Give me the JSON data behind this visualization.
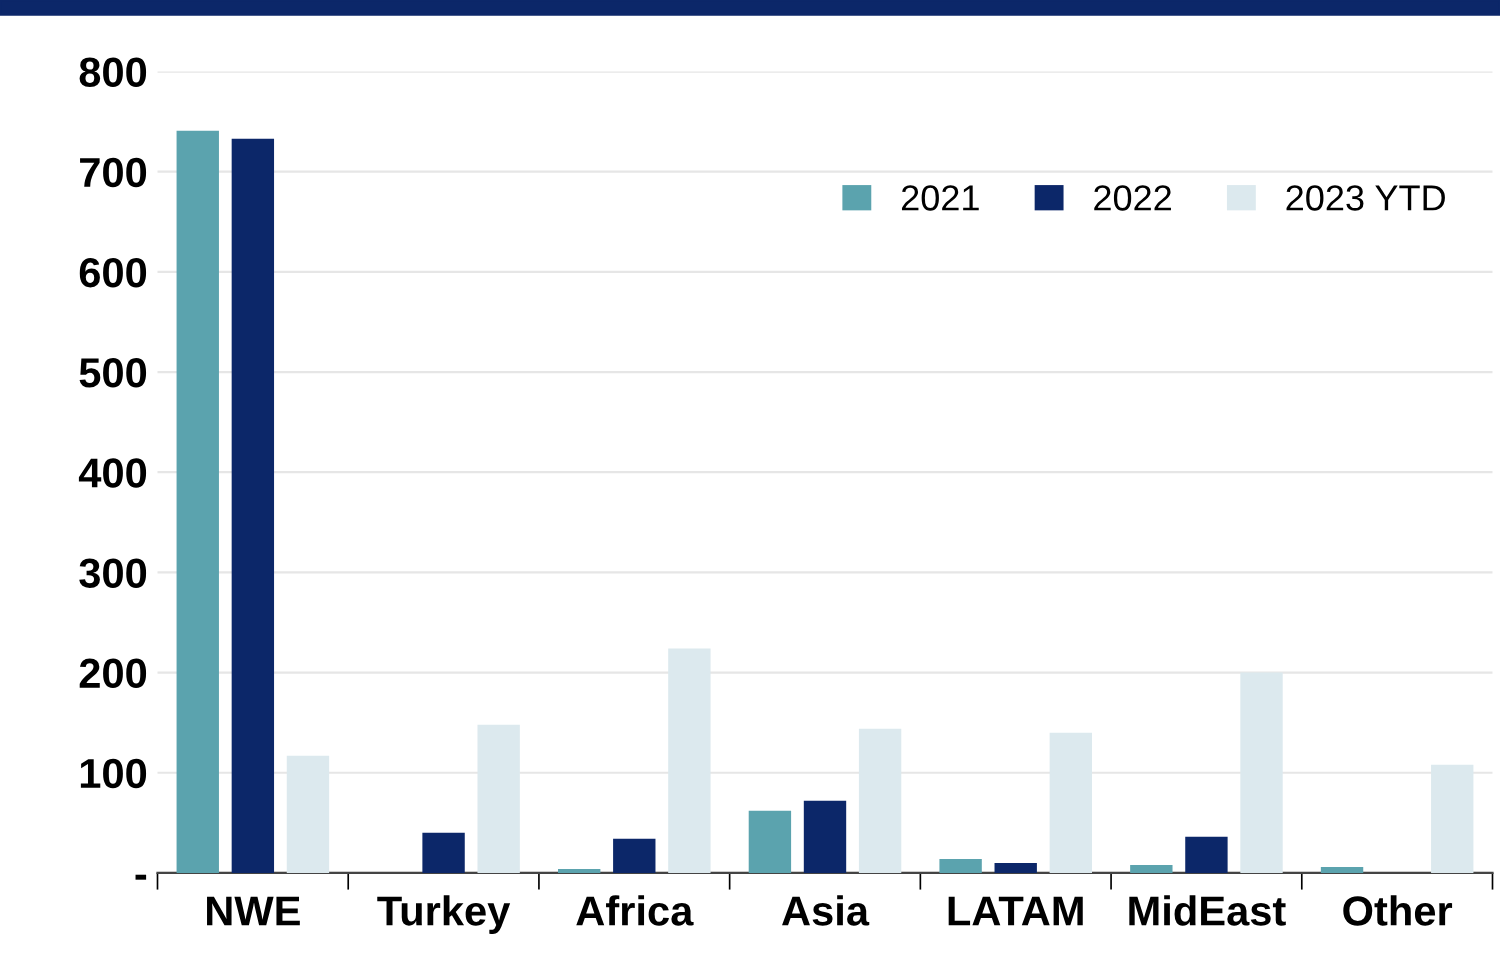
{
  "chart_data": {
    "type": "bar",
    "categories": [
      "NWE",
      "Turkey",
      "Africa",
      "Asia",
      "LATAM",
      "MidEast",
      "Other"
    ],
    "series": [
      {
        "name": "2021",
        "color": "#5ba3ae",
        "values": [
          741,
          0,
          4,
          62,
          14,
          8,
          6
        ]
      },
      {
        "name": "2022",
        "color": "#0c2769",
        "values": [
          733,
          40,
          34,
          72,
          10,
          36,
          0
        ]
      },
      {
        "name": "2023 YTD",
        "color": "#dce9ee",
        "values": [
          117,
          148,
          224,
          144,
          140,
          200,
          108
        ]
      }
    ],
    "ylim": [
      0,
      800
    ],
    "yticks": [
      {
        "value": 0,
        "label": "-"
      },
      100,
      200,
      300,
      400,
      500,
      600,
      700,
      800
    ],
    "grid": "y",
    "legend": "top right"
  }
}
